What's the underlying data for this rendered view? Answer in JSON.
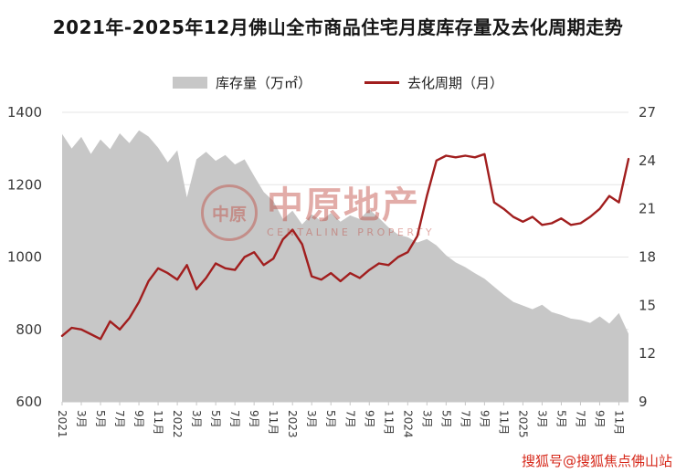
{
  "title": "2021年-2025年12月佛山全市商品住宅月度库存量及去化周期走势",
  "legend": {
    "inventory": "库存量（万㎡）",
    "cycle": "去化周期（月）"
  },
  "watermark": {
    "logo": "中原",
    "name": "中原地产",
    "subtitle": "CENTALINE PROPERTY"
  },
  "footer": "搜狐号@搜狐焦点佛山站",
  "colors": {
    "area": "#c7c7c7",
    "line": "#a11e1e",
    "grid": "#e5e5e5",
    "axis_text": "#3a3a3a",
    "footer_red": "#d6291b",
    "watermark_red": "#bf4a40"
  },
  "chart_data": {
    "type": "combo",
    "title": "2021年-2025年12月佛山全市商品住宅月度库存量及去化周期走势",
    "x_count": 60,
    "x_unit": "month",
    "x_ticks": [
      {
        "index": 0,
        "label": "2021"
      },
      {
        "index": 2,
        "label": "3月"
      },
      {
        "index": 4,
        "label": "5月"
      },
      {
        "index": 6,
        "label": "7月"
      },
      {
        "index": 8,
        "label": "9月"
      },
      {
        "index": 10,
        "label": "11月"
      },
      {
        "index": 12,
        "label": "2022"
      },
      {
        "index": 14,
        "label": "3月"
      },
      {
        "index": 16,
        "label": "5月"
      },
      {
        "index": 18,
        "label": "7月"
      },
      {
        "index": 20,
        "label": "9月"
      },
      {
        "index": 22,
        "label": "11月"
      },
      {
        "index": 24,
        "label": "2023"
      },
      {
        "index": 26,
        "label": "3月"
      },
      {
        "index": 28,
        "label": "5月"
      },
      {
        "index": 30,
        "label": "7月"
      },
      {
        "index": 32,
        "label": "9月"
      },
      {
        "index": 34,
        "label": "11月"
      },
      {
        "index": 36,
        "label": "2024"
      },
      {
        "index": 38,
        "label": "3月"
      },
      {
        "index": 40,
        "label": "5月"
      },
      {
        "index": 42,
        "label": "7月"
      },
      {
        "index": 44,
        "label": "9月"
      },
      {
        "index": 46,
        "label": "11月"
      },
      {
        "index": 48,
        "label": "2025"
      },
      {
        "index": 50,
        "label": "3月"
      },
      {
        "index": 52,
        "label": "5月"
      },
      {
        "index": 54,
        "label": "7月"
      },
      {
        "index": 56,
        "label": "9月"
      },
      {
        "index": 58,
        "label": "11月"
      }
    ],
    "series": [
      {
        "name": "库存量（万㎡）",
        "type": "area",
        "axis": "left",
        "color": "#c7c7c7",
        "values": [
          1340,
          1300,
          1332,
          1285,
          1325,
          1298,
          1342,
          1315,
          1350,
          1333,
          1302,
          1262,
          1295,
          1165,
          1270,
          1291,
          1266,
          1282,
          1256,
          1270,
          1224,
          1180,
          1155,
          1105,
          1128,
          1090,
          1118,
          1100,
          1122,
          1098,
          1115,
          1105,
          1132,
          1108,
          1082,
          1062,
          1055,
          1040,
          1050,
          1032,
          1005,
          985,
          972,
          955,
          940,
          918,
          896,
          876,
          866,
          856,
          868,
          848,
          840,
          830,
          826,
          818,
          836,
          816,
          845,
          788
        ]
      },
      {
        "name": "去化周期（月）",
        "type": "line",
        "axis": "right",
        "color": "#a11e1e",
        "values": [
          13.1,
          13.6,
          13.5,
          13.2,
          12.9,
          14.0,
          13.5,
          14.2,
          15.2,
          16.5,
          17.3,
          17.0,
          16.6,
          17.5,
          16.0,
          16.7,
          17.6,
          17.3,
          17.2,
          18.0,
          18.3,
          17.5,
          17.9,
          19.1,
          19.7,
          18.8,
          16.8,
          16.6,
          17.0,
          16.5,
          17.0,
          16.7,
          17.2,
          17.6,
          17.5,
          18.0,
          18.3,
          19.3,
          21.8,
          24.0,
          24.3,
          24.2,
          24.3,
          24.2,
          24.4,
          21.4,
          21.0,
          20.5,
          20.2,
          20.5,
          20.0,
          20.1,
          20.4,
          20.0,
          20.1,
          20.5,
          21.0,
          21.8,
          21.4,
          24.1
        ]
      }
    ],
    "left_axis": {
      "min": 600,
      "max": 1400,
      "ticks": [
        600,
        800,
        1000,
        1200,
        1400
      ],
      "label": "库存量（万㎡）"
    },
    "right_axis": {
      "min": 9,
      "max": 27,
      "ticks": [
        9,
        12,
        15,
        18,
        21,
        24,
        27
      ],
      "label": "去化周期（月）"
    },
    "grid": {
      "horizontal": true,
      "color": "#e5e5e5"
    },
    "legend_position": "top"
  }
}
